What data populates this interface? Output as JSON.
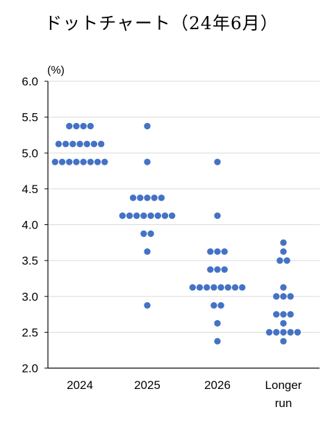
{
  "chart_data": {
    "type": "scatter",
    "title": "ドットチャート（24年6月）",
    "unit_label": "(%)",
    "ylim": [
      2.0,
      6.0
    ],
    "yticks": [
      "6.0",
      "5.5",
      "5.0",
      "4.5",
      "4.0",
      "3.5",
      "3.0",
      "2.5",
      "2.0"
    ],
    "grid": true,
    "dot_color": "#4472C4",
    "categories": [
      {
        "label": [
          "2024"
        ],
        "counts": {
          "5.375": 4,
          "5.125": 7,
          "4.875": 8
        }
      },
      {
        "label": [
          "2025"
        ],
        "counts": {
          "5.375": 1,
          "4.875": 1,
          "4.375": 5,
          "4.125": 8,
          "3.875": 2,
          "3.625": 1,
          "2.875": 1
        }
      },
      {
        "label": [
          "2026"
        ],
        "counts": {
          "4.875": 1,
          "4.125": 1,
          "3.625": 3,
          "3.375": 3,
          "3.125": 8,
          "2.875": 2,
          "2.625": 1,
          "2.375": 1
        }
      },
      {
        "label": [
          "Longer",
          "run"
        ],
        "counts": {
          "3.75": 1,
          "3.625": 1,
          "3.5": 2,
          "3.125": 1,
          "3.0": 3,
          "2.75": 3,
          "2.625": 1,
          "2.5": 5,
          "2.375": 1
        }
      }
    ]
  }
}
